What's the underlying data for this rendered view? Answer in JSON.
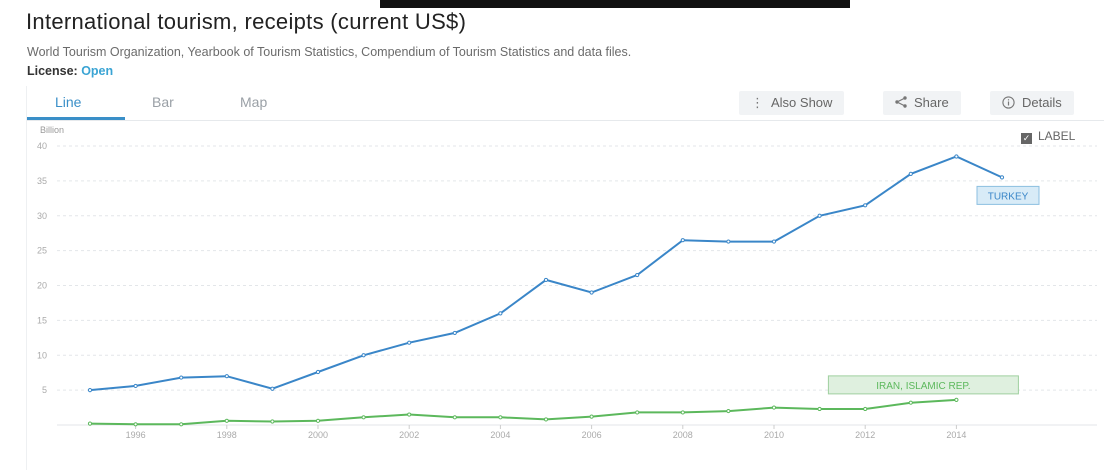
{
  "page": {
    "title": "International tourism, receipts (current US$)",
    "source": "World Tourism Organization, Yearbook of Tourism Statistics, Compendium of Tourism Statistics and data files.",
    "license_label": "License:",
    "license_value": "Open"
  },
  "tabs": [
    {
      "label": "Line",
      "active": true
    },
    {
      "label": "Bar",
      "active": false
    },
    {
      "label": "Map",
      "active": false
    }
  ],
  "toolbar": {
    "also_show": "Also Show",
    "share": "Share",
    "details": "Details",
    "also_show_icon": "vertical-dots-icon",
    "share_icon": "share-icon",
    "details_icon": "info-icon"
  },
  "label_toggle": {
    "text": "LABEL",
    "checked": true
  },
  "colors": {
    "turkey": "#3a86c8",
    "iran": "#5cb85c",
    "accent": "#3a8fc8"
  },
  "chart_data": {
    "type": "line",
    "unit_label": "Billion",
    "ylim": [
      0,
      40
    ],
    "y_ticks": [
      5,
      10,
      15,
      20,
      25,
      30,
      35,
      40
    ],
    "x_ticks": [
      1996,
      1998,
      2000,
      2002,
      2004,
      2006,
      2008,
      2010,
      2012,
      2014
    ],
    "xlim": [
      1995,
      2015
    ],
    "grid": true,
    "series": [
      {
        "name": "TURKEY",
        "color": "#3a86c8",
        "x": [
          1995,
          1996,
          1997,
          1998,
          1999,
          2000,
          2001,
          2002,
          2003,
          2004,
          2005,
          2006,
          2007,
          2008,
          2009,
          2010,
          2011,
          2012,
          2013,
          2014,
          2015
        ],
        "y": [
          5.0,
          5.6,
          6.8,
          7.0,
          5.2,
          7.6,
          10.0,
          11.8,
          13.2,
          16.0,
          20.8,
          19.0,
          21.5,
          26.5,
          26.3,
          26.3,
          30.0,
          31.5,
          36.0,
          38.5,
          35.5
        ]
      },
      {
        "name": "IRAN, ISLAMIC REP.",
        "color": "#5cb85c",
        "x": [
          1995,
          1996,
          1997,
          1998,
          1999,
          2000,
          2001,
          2002,
          2003,
          2004,
          2005,
          2006,
          2007,
          2008,
          2009,
          2010,
          2011,
          2012,
          2013,
          2014
        ],
        "y": [
          0.2,
          0.1,
          0.1,
          0.6,
          0.5,
          0.6,
          1.1,
          1.5,
          1.1,
          1.1,
          0.8,
          1.2,
          1.8,
          1.8,
          2.0,
          2.5,
          2.3,
          2.3,
          3.2,
          3.6
        ]
      }
    ]
  }
}
